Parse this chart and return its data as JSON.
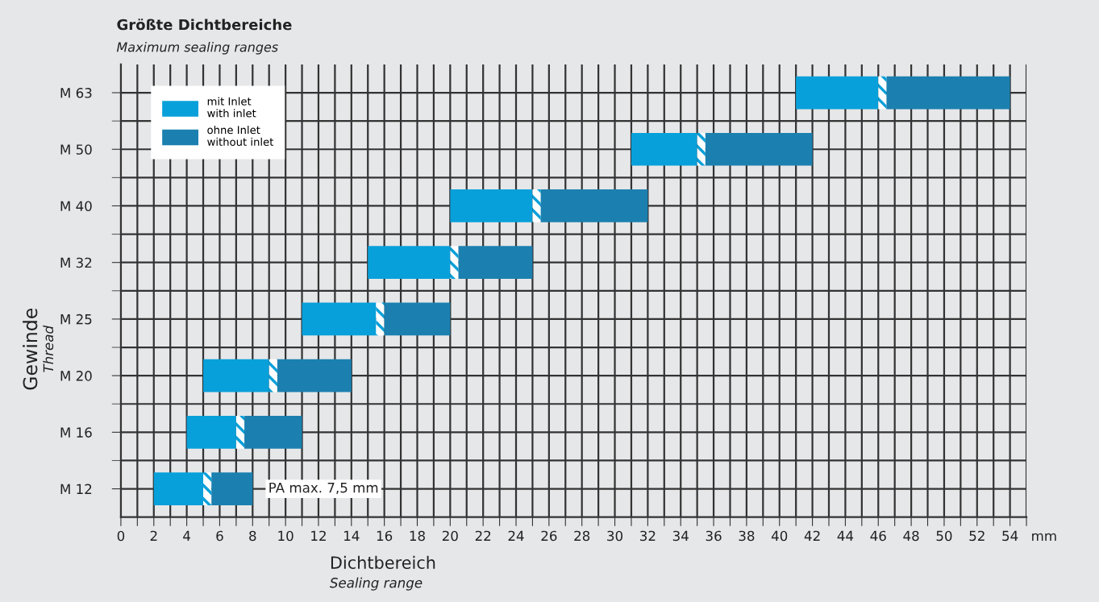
{
  "chart_data": {
    "type": "bar",
    "orientation": "horizontal",
    "stacked": true,
    "title": "Größte Dichtbereiche",
    "subtitle": "Maximum sealing ranges",
    "xlabel": "Dichtbereich\nSealing range",
    "ylabel": "Gewinde\nThread",
    "categories": [
      "M 63",
      "M 50",
      "M 40",
      "M 32",
      "M 25",
      "M 20",
      "M 16",
      "M 12"
    ],
    "series": [
      {
        "name": "mit Inlet\nwith inlet",
        "color": "#08a0da",
        "base": [
          41,
          31,
          20,
          15,
          11,
          5,
          4,
          2
        ],
        "values": [
          5,
          4,
          5,
          5,
          4.5,
          4,
          3,
          3
        ]
      },
      {
        "color": "#ffffff",
        "base": [
          46,
          35,
          25,
          20,
          15.5,
          9,
          7,
          5
        ],
        "values": [
          0.5,
          0.5,
          0.5,
          0.5,
          0.5,
          0.5,
          0.5,
          0.5
        ]
      },
      {
        "name": "ohne Inlet\nwithout inlet",
        "color": "#1b80b0",
        "base": [
          46.5,
          35.5,
          25.5,
          20.5,
          16,
          9.5,
          7.5,
          5.5
        ],
        "values": [
          7.5,
          6.5,
          6.5,
          4.5,
          4,
          4.5,
          3.5,
          2.5
        ]
      }
    ],
    "xlim": [
      0,
      55
    ],
    "xticks": [
      0,
      {
        "value": 1,
        "label": null
      },
      2,
      {
        "value": 3,
        "label": null
      },
      4,
      {
        "value": 5,
        "label": null
      },
      6,
      {
        "value": 7,
        "label": null
      },
      8,
      {
        "value": 9,
        "label": null
      },
      10,
      {
        "value": 11,
        "label": null
      },
      12,
      {
        "value": 13,
        "label": null
      },
      14,
      {
        "value": 15,
        "label": null
      },
      16,
      {
        "value": 17,
        "label": null
      },
      18,
      {
        "value": 19,
        "label": null
      },
      20,
      {
        "value": 21,
        "label": null
      },
      22,
      {
        "value": 23,
        "label": null
      },
      24,
      {
        "value": 25,
        "label": null
      },
      26,
      {
        "value": 27,
        "label": null
      },
      28,
      {
        "value": 29,
        "label": null
      },
      30,
      {
        "value": 31,
        "label": null
      },
      32,
      {
        "value": 33,
        "label": null
      },
      34,
      {
        "value": 35,
        "label": null
      },
      36,
      {
        "value": 37,
        "label": null
      },
      38,
      {
        "value": 39,
        "label": null
      },
      40,
      {
        "value": 41,
        "label": null
      },
      42,
      {
        "value": 43,
        "label": null
      },
      44,
      {
        "value": 45,
        "label": null
      },
      46,
      {
        "value": 47,
        "label": null
      },
      48,
      {
        "value": 49,
        "label": null
      },
      50,
      {
        "value": 51,
        "label": null
      },
      52,
      {
        "value": 53,
        "label": null
      },
      54,
      {
        "value": 55,
        "label": null
      }
    ],
    "annotations": [
      "mm",
      {
        "text": "PA max. 7,5 mm",
        "x": 8,
        "y": "M 12"
      }
    ],
    "grid": true,
    "legend": "top left"
  }
}
